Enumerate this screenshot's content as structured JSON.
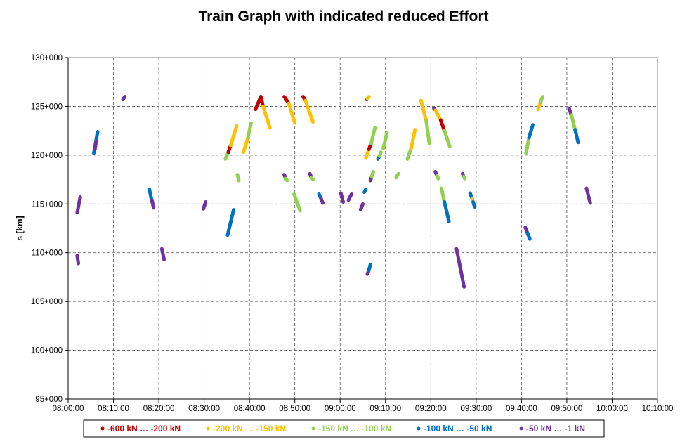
{
  "chart_data": {
    "type": "scatter",
    "title": "Train Graph with indicated reduced Effort",
    "xlabel": "",
    "ylabel": "s [km]",
    "x_unit": "time",
    "xlim": [
      "08:00:00",
      "10:10:00"
    ],
    "ylim": [
      95,
      130
    ],
    "x_ticks": [
      "08:00:00",
      "08:10:00",
      "08:20:00",
      "08:30:00",
      "08:40:00",
      "08:50:00",
      "09:00:00",
      "09:10:00",
      "09:20:00",
      "09:30:00",
      "09:40:00",
      "09:50:00",
      "10:00:00",
      "10:10:00"
    ],
    "y_ticks": [
      "95+000",
      "100+000",
      "105+000",
      "110+000",
      "115+000",
      "120+000",
      "125+000",
      "130+000"
    ],
    "y_tick_values": [
      95,
      100,
      105,
      110,
      115,
      120,
      125,
      130
    ],
    "grid": true,
    "legend_position": "bottom",
    "series": [
      {
        "name": "-600 kN … -200 kN",
        "color": "#c00000"
      },
      {
        "name": "-200 kN … -150 kN",
        "color": "#ffc000"
      },
      {
        "name": "-150 kN … -100 kN",
        "color": "#92d050"
      },
      {
        "name": "-100 kN … -50 kN",
        "color": "#0070c0"
      },
      {
        "name": "-50 kN … -1 kN",
        "color": "#7030a0"
      }
    ],
    "segments": [
      {
        "series": 4,
        "x": [
          "08:02:00",
          "08:02:15"
        ],
        "y": [
          109.7,
          108.9
        ]
      },
      {
        "series": 4,
        "x": [
          "08:02:00",
          "08:02:40"
        ],
        "y": [
          114.1,
          115.7
        ]
      },
      {
        "series": 3,
        "x": [
          "08:05:40",
          "08:06:30"
        ],
        "y": [
          120.2,
          122.4
        ]
      },
      {
        "series": 4,
        "x": [
          "08:05:55",
          "08:06:10"
        ],
        "y": [
          120.6,
          121.4
        ]
      },
      {
        "series": 4,
        "x": [
          "08:12:05",
          "08:12:30"
        ],
        "y": [
          125.7,
          126.0
        ]
      },
      {
        "series": 3,
        "x": [
          "08:17:55",
          "08:18:30"
        ],
        "y": [
          116.5,
          115.2
        ]
      },
      {
        "series": 4,
        "x": [
          "08:18:30",
          "08:18:50"
        ],
        "y": [
          115.4,
          114.6
        ]
      },
      {
        "series": 4,
        "x": [
          "08:20:40",
          "08:21:10"
        ],
        "y": [
          110.4,
          109.3
        ]
      },
      {
        "series": 4,
        "x": [
          "08:29:50",
          "08:30:20"
        ],
        "y": [
          114.5,
          115.2
        ]
      },
      {
        "series": 2,
        "x": [
          "08:34:40",
          "08:35:20"
        ],
        "y": [
          119.6,
          120.3
        ]
      },
      {
        "series": 0,
        "x": [
          "08:35:20",
          "08:35:50"
        ],
        "y": [
          120.3,
          121.0
        ]
      },
      {
        "series": 1,
        "x": [
          "08:35:50",
          "08:37:10"
        ],
        "y": [
          121.0,
          123.0
        ]
      },
      {
        "series": 3,
        "x": [
          "08:35:10",
          "08:36:30"
        ],
        "y": [
          111.8,
          114.4
        ]
      },
      {
        "series": 2,
        "x": [
          "08:37:20",
          "08:37:40"
        ],
        "y": [
          118.0,
          117.4
        ]
      },
      {
        "series": 1,
        "x": [
          "08:38:40",
          "08:39:40"
        ],
        "y": [
          120.3,
          121.8
        ]
      },
      {
        "series": 2,
        "x": [
          "08:39:40",
          "08:40:20"
        ],
        "y": [
          121.8,
          123.3
        ]
      },
      {
        "series": 0,
        "x": [
          "08:41:20",
          "08:42:30"
        ],
        "y": [
          124.7,
          126.0
        ]
      },
      {
        "series": 0,
        "x": [
          "08:42:30",
          "08:43:00"
        ],
        "y": [
          126.0,
          125.0
        ]
      },
      {
        "series": 1,
        "x": [
          "08:43:00",
          "08:44:30"
        ],
        "y": [
          125.0,
          122.8
        ]
      },
      {
        "series": 4,
        "x": [
          "08:47:40",
          "08:48:00"
        ],
        "y": [
          118.0,
          117.6
        ]
      },
      {
        "series": 2,
        "x": [
          "08:48:00",
          "08:48:20"
        ],
        "y": [
          117.6,
          117.4
        ]
      },
      {
        "series": 0,
        "x": [
          "08:47:40",
          "08:48:40"
        ],
        "y": [
          126.0,
          125.3
        ]
      },
      {
        "series": 1,
        "x": [
          "08:48:40",
          "08:50:00"
        ],
        "y": [
          125.3,
          123.3
        ]
      },
      {
        "series": 2,
        "x": [
          "08:49:50",
          "08:51:10"
        ],
        "y": [
          116.0,
          114.3
        ]
      },
      {
        "series": 0,
        "x": [
          "08:51:50",
          "08:52:20"
        ],
        "y": [
          126.0,
          125.6
        ]
      },
      {
        "series": 1,
        "x": [
          "08:52:20",
          "08:54:00"
        ],
        "y": [
          125.6,
          123.4
        ]
      },
      {
        "series": 4,
        "x": [
          "08:53:20",
          "08:53:40"
        ],
        "y": [
          118.1,
          117.7
        ]
      },
      {
        "series": 2,
        "x": [
          "08:53:40",
          "08:54:00"
        ],
        "y": [
          117.7,
          117.5
        ]
      },
      {
        "series": 3,
        "x": [
          "08:55:20",
          "08:55:50"
        ],
        "y": [
          116.0,
          115.5
        ]
      },
      {
        "series": 4,
        "x": [
          "08:55:50",
          "08:56:10"
        ],
        "y": [
          115.5,
          115.1
        ]
      },
      {
        "series": 4,
        "x": [
          "09:00:10",
          "09:00:40"
        ],
        "y": [
          116.1,
          115.2
        ]
      },
      {
        "series": 4,
        "x": [
          "09:01:50",
          "09:02:30"
        ],
        "y": [
          115.4,
          116.0
        ]
      },
      {
        "series": 4,
        "x": [
          "09:04:30",
          "09:05:00"
        ],
        "y": [
          114.4,
          115.0
        ]
      },
      {
        "series": 3,
        "x": [
          "09:05:20",
          "09:05:40"
        ],
        "y": [
          116.2,
          116.5
        ]
      },
      {
        "series": 4,
        "x": [
          "09:05:50",
          "09:06:00"
        ],
        "y": [
          125.7,
          125.8
        ]
      },
      {
        "series": 1,
        "x": [
          "09:06:00",
          "09:06:20"
        ],
        "y": [
          125.8,
          126.0
        ]
      },
      {
        "series": 1,
        "x": [
          "09:05:40",
          "09:06:20"
        ],
        "y": [
          119.7,
          120.6
        ]
      },
      {
        "series": 0,
        "x": [
          "09:06:20",
          "09:06:50"
        ],
        "y": [
          120.6,
          121.2
        ]
      },
      {
        "series": 2,
        "x": [
          "09:06:50",
          "09:07:40"
        ],
        "y": [
          121.2,
          122.8
        ]
      },
      {
        "series": 4,
        "x": [
          "09:06:00",
          "09:06:20"
        ],
        "y": [
          107.8,
          108.2
        ]
      },
      {
        "series": 3,
        "x": [
          "09:06:20",
          "09:06:40"
        ],
        "y": [
          108.2,
          108.8
        ]
      },
      {
        "series": 4,
        "x": [
          "09:06:40",
          "09:06:55"
        ],
        "y": [
          117.4,
          117.8
        ]
      },
      {
        "series": 2,
        "x": [
          "09:06:55",
          "09:07:20"
        ],
        "y": [
          117.8,
          118.3
        ]
      },
      {
        "series": 3,
        "x": [
          "09:08:20",
          "09:08:40"
        ],
        "y": [
          119.6,
          119.9
        ]
      },
      {
        "series": 2,
        "x": [
          "09:08:40",
          "09:09:00"
        ],
        "y": [
          119.9,
          120.3
        ]
      },
      {
        "series": 2,
        "x": [
          "09:09:30",
          "09:10:20"
        ],
        "y": [
          120.7,
          122.3
        ]
      },
      {
        "series": 2,
        "x": [
          "09:12:20",
          "09:12:50"
        ],
        "y": [
          117.7,
          118.1
        ]
      },
      {
        "series": 2,
        "x": [
          "09:14:50",
          "09:15:40"
        ],
        "y": [
          119.6,
          120.7
        ]
      },
      {
        "series": 1,
        "x": [
          "09:15:40",
          "09:16:30"
        ],
        "y": [
          120.7,
          122.6
        ]
      },
      {
        "series": 1,
        "x": [
          "09:17:50",
          "09:19:00"
        ],
        "y": [
          125.6,
          123.5
        ]
      },
      {
        "series": 2,
        "x": [
          "09:19:00",
          "09:19:40"
        ],
        "y": [
          123.5,
          121.2
        ]
      },
      {
        "series": 4,
        "x": [
          "09:20:40",
          "09:21:00"
        ],
        "y": [
          124.8,
          124.6
        ]
      },
      {
        "series": 1,
        "x": [
          "09:21:00",
          "09:22:10"
        ],
        "y": [
          124.6,
          123.6
        ]
      },
      {
        "series": 0,
        "x": [
          "09:22:10",
          "09:23:00"
        ],
        "y": [
          123.6,
          122.5
        ]
      },
      {
        "series": 2,
        "x": [
          "09:23:00",
          "09:24:10"
        ],
        "y": [
          122.5,
          120.9
        ]
      },
      {
        "series": 4,
        "x": [
          "09:21:00",
          "09:21:20"
        ],
        "y": [
          118.3,
          117.9
        ]
      },
      {
        "series": 2,
        "x": [
          "09:21:20",
          "09:21:40"
        ],
        "y": [
          117.9,
          117.6
        ]
      },
      {
        "series": 2,
        "x": [
          "09:22:20",
          "09:23:00"
        ],
        "y": [
          116.6,
          115.2
        ]
      },
      {
        "series": 3,
        "x": [
          "09:23:00",
          "09:24:00"
        ],
        "y": [
          115.2,
          113.2
        ]
      },
      {
        "series": 4,
        "x": [
          "09:25:40",
          "09:27:20"
        ],
        "y": [
          110.4,
          106.5
        ]
      },
      {
        "series": 4,
        "x": [
          "09:27:00",
          "09:27:15"
        ],
        "y": [
          118.1,
          117.8
        ]
      },
      {
        "series": 2,
        "x": [
          "09:27:15",
          "09:27:30"
        ],
        "y": [
          117.8,
          117.6
        ]
      },
      {
        "series": 3,
        "x": [
          "09:28:40",
          "09:29:10"
        ],
        "y": [
          116.1,
          115.5
        ]
      },
      {
        "series": 1,
        "x": [
          "09:29:10",
          "09:29:20"
        ],
        "y": [
          115.5,
          115.2
        ]
      },
      {
        "series": 3,
        "x": [
          "09:29:20",
          "09:29:40"
        ],
        "y": [
          115.2,
          114.7
        ]
      },
      {
        "series": 4,
        "x": [
          "09:40:50",
          "09:41:20"
        ],
        "y": [
          112.6,
          112.0
        ]
      },
      {
        "series": 3,
        "x": [
          "09:41:20",
          "09:41:50"
        ],
        "y": [
          112.0,
          111.4
        ]
      },
      {
        "series": 2,
        "x": [
          "09:41:00",
          "09:41:40"
        ],
        "y": [
          120.2,
          121.8
        ]
      },
      {
        "series": 3,
        "x": [
          "09:41:40",
          "09:42:30"
        ],
        "y": [
          121.8,
          123.1
        ]
      },
      {
        "series": 1,
        "x": [
          "09:43:40",
          "09:44:10"
        ],
        "y": [
          124.7,
          125.4
        ]
      },
      {
        "series": 2,
        "x": [
          "09:44:10",
          "09:44:40"
        ],
        "y": [
          125.4,
          126.0
        ]
      },
      {
        "series": 4,
        "x": [
          "09:50:30",
          "09:51:00"
        ],
        "y": [
          124.8,
          124.1
        ]
      },
      {
        "series": 2,
        "x": [
          "09:51:00",
          "09:51:50"
        ],
        "y": [
          124.1,
          122.6
        ]
      },
      {
        "series": 3,
        "x": [
          "09:51:50",
          "09:52:30"
        ],
        "y": [
          122.6,
          121.3
        ]
      },
      {
        "series": 4,
        "x": [
          "09:54:20",
          "09:55:10"
        ],
        "y": [
          116.6,
          115.1
        ]
      }
    ]
  }
}
